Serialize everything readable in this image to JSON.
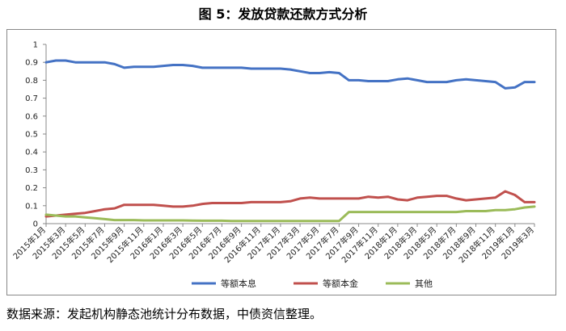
{
  "title": "图 5：发放贷款还款方式分析",
  "source": "数据来源：发起机构静态池统计分布数据，中债资信整理。",
  "chart_data": {
    "type": "line",
    "ylim": [
      0,
      1
    ],
    "yticks": [
      "0",
      "0.1",
      "0.2",
      "0.3",
      "0.4",
      "0.5",
      "0.6",
      "0.7",
      "0.8",
      "0.9",
      "1"
    ],
    "grid": false,
    "legend_position": "bottom",
    "x_labels": [
      "2015年1月",
      "2015年3月",
      "2015年5月",
      "2015年7月",
      "2015年9月",
      "2015年11月",
      "2016年1月",
      "2016年3月",
      "2016年5月",
      "2016年7月",
      "2016年9月",
      "2016年11月",
      "2017年1月",
      "2017年3月",
      "2017年5月",
      "2017年7月",
      "2017年9月",
      "2017年11月",
      "2018年1月",
      "2018年3月",
      "2018年5月",
      "2018年7月",
      "2018年9月",
      "2018年11月",
      "2019年1月",
      "2019年3月"
    ],
    "series": [
      {
        "name": "等额本息",
        "color": "#4472C4",
        "values": [
          0.9,
          0.91,
          0.91,
          0.9,
          0.9,
          0.9,
          0.9,
          0.89,
          0.87,
          0.875,
          0.875,
          0.875,
          0.88,
          0.885,
          0.885,
          0.88,
          0.87,
          0.87,
          0.87,
          0.87,
          0.87,
          0.865,
          0.865,
          0.865,
          0.865,
          0.86,
          0.85,
          0.84,
          0.84,
          0.845,
          0.84,
          0.8,
          0.8,
          0.795,
          0.795,
          0.795,
          0.805,
          0.81,
          0.8,
          0.79,
          0.79,
          0.79,
          0.8,
          0.805,
          0.8,
          0.795,
          0.79,
          0.755,
          0.76,
          0.79,
          0.79
        ]
      },
      {
        "name": "等额本金",
        "color": "#C0504D",
        "values": [
          0.04,
          0.045,
          0.05,
          0.055,
          0.06,
          0.07,
          0.08,
          0.085,
          0.105,
          0.105,
          0.105,
          0.105,
          0.1,
          0.095,
          0.095,
          0.1,
          0.11,
          0.115,
          0.115,
          0.115,
          0.115,
          0.12,
          0.12,
          0.12,
          0.12,
          0.125,
          0.14,
          0.145,
          0.14,
          0.14,
          0.14,
          0.14,
          0.14,
          0.15,
          0.145,
          0.15,
          0.135,
          0.13,
          0.145,
          0.15,
          0.155,
          0.155,
          0.14,
          0.13,
          0.135,
          0.14,
          0.145,
          0.18,
          0.16,
          0.12,
          0.12
        ]
      },
      {
        "name": "其他",
        "color": "#9BBB59",
        "values": [
          0.05,
          0.045,
          0.04,
          0.04,
          0.035,
          0.03,
          0.025,
          0.02,
          0.02,
          0.02,
          0.018,
          0.018,
          0.018,
          0.018,
          0.018,
          0.017,
          0.016,
          0.016,
          0.016,
          0.015,
          0.015,
          0.015,
          0.015,
          0.015,
          0.015,
          0.015,
          0.015,
          0.015,
          0.015,
          0.015,
          0.015,
          0.065,
          0.065,
          0.065,
          0.065,
          0.065,
          0.065,
          0.065,
          0.065,
          0.065,
          0.065,
          0.065,
          0.065,
          0.07,
          0.07,
          0.07,
          0.075,
          0.075,
          0.08,
          0.09,
          0.095
        ]
      }
    ]
  }
}
